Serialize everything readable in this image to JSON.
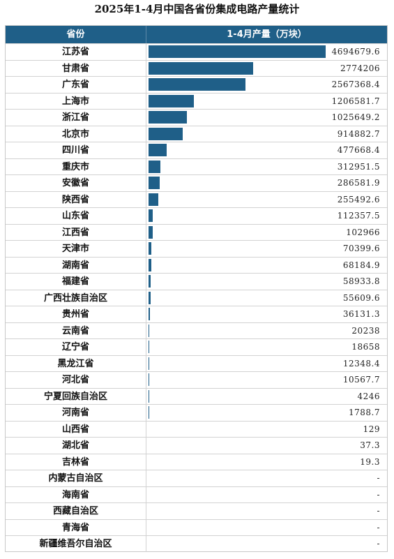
{
  "title": "2025年1-4月中国各省份集成电路产量统计",
  "header": {
    "col_province": "省份",
    "col_value": "1-4月产量（万块）"
  },
  "colors": {
    "bar": "#1f5f88",
    "header_bg": "#1f5f88"
  },
  "chart_data": {
    "type": "bar",
    "title": "2025年1-4月中国各省份集成电路产量统计",
    "orientation": "horizontal",
    "xlabel": "1-4月产量（万块）",
    "ylabel": "省份",
    "categories": [
      "江苏省",
      "甘肃省",
      "广东省",
      "上海市",
      "浙江省",
      "北京市",
      "四川省",
      "重庆市",
      "安徽省",
      "陕西省",
      "山东省",
      "江西省",
      "天津市",
      "湖南省",
      "福建省",
      "广西壮族自治区",
      "贵州省",
      "云南省",
      "辽宁省",
      "黑龙江省",
      "河北省",
      "宁夏回族自治区",
      "河南省",
      "山西省",
      "湖北省",
      "吉林省",
      "内蒙古自治区",
      "海南省",
      "西藏自治区",
      "青海省",
      "新疆维吾尔自治区"
    ],
    "values": [
      4694679.6,
      2774206,
      2567368.4,
      1206581.7,
      1025649.2,
      914882.7,
      477668.4,
      312951.5,
      286581.9,
      255492.6,
      112357.5,
      102966,
      70399.6,
      68184.9,
      58933.8,
      55609.6,
      36131.3,
      20238,
      18658,
      12348.4,
      10567.7,
      4246,
      1788.7,
      129,
      37.3,
      19.3,
      null,
      null,
      null,
      null,
      null
    ],
    "labels": [
      "4694679.6",
      "2774206",
      "2567368.4",
      "1206581.7",
      "1025649.2",
      "914882.7",
      "477668.4",
      "312951.5",
      "286581.9",
      "255492.6",
      "112357.5",
      "102966",
      "70399.6",
      "68184.9",
      "58933.8",
      "55609.6",
      "36131.3",
      "20238",
      "18658",
      "12348.4",
      "10567.7",
      "4246",
      "1788.7",
      "129",
      "37.3",
      "19.3",
      "-",
      "-",
      "-",
      "-",
      "-"
    ]
  }
}
